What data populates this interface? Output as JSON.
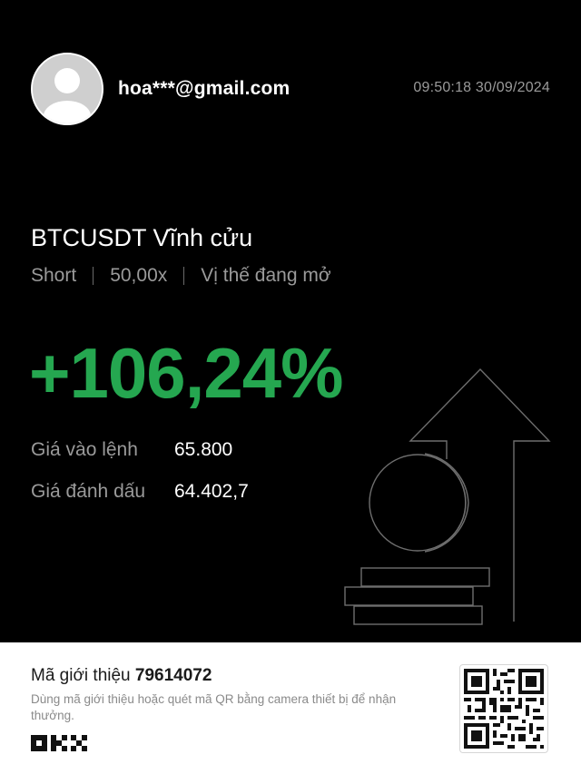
{
  "user": {
    "email": "hoa***@gmail.com",
    "avatar_icon": "default-user-avatar-icon"
  },
  "timestamp": "09:50:18 30/09/2024",
  "position": {
    "pair": "BTCUSDT Vĩnh cửu",
    "side": "Short",
    "leverage": "50,00x",
    "status": "Vị thế đang mở",
    "pnl_percent": "+106,24%",
    "pnl_color": "#25a750"
  },
  "prices": [
    {
      "label": "Giá vào lệnh",
      "value": "65.800"
    },
    {
      "label": "Giá đánh dấu",
      "value": "64.402,7"
    }
  ],
  "illustration_icon": "coin-stack-arrow-up-icon",
  "referral": {
    "label": "Mã giới thiệu",
    "code": "79614072",
    "description": "Dùng mã giới thiệu hoặc quét mã QR bằng camera thiết bị để nhận thưởng."
  },
  "brand": {
    "logo_icon": "okx-logo-icon",
    "qr_icon": "qr-code-icon"
  }
}
